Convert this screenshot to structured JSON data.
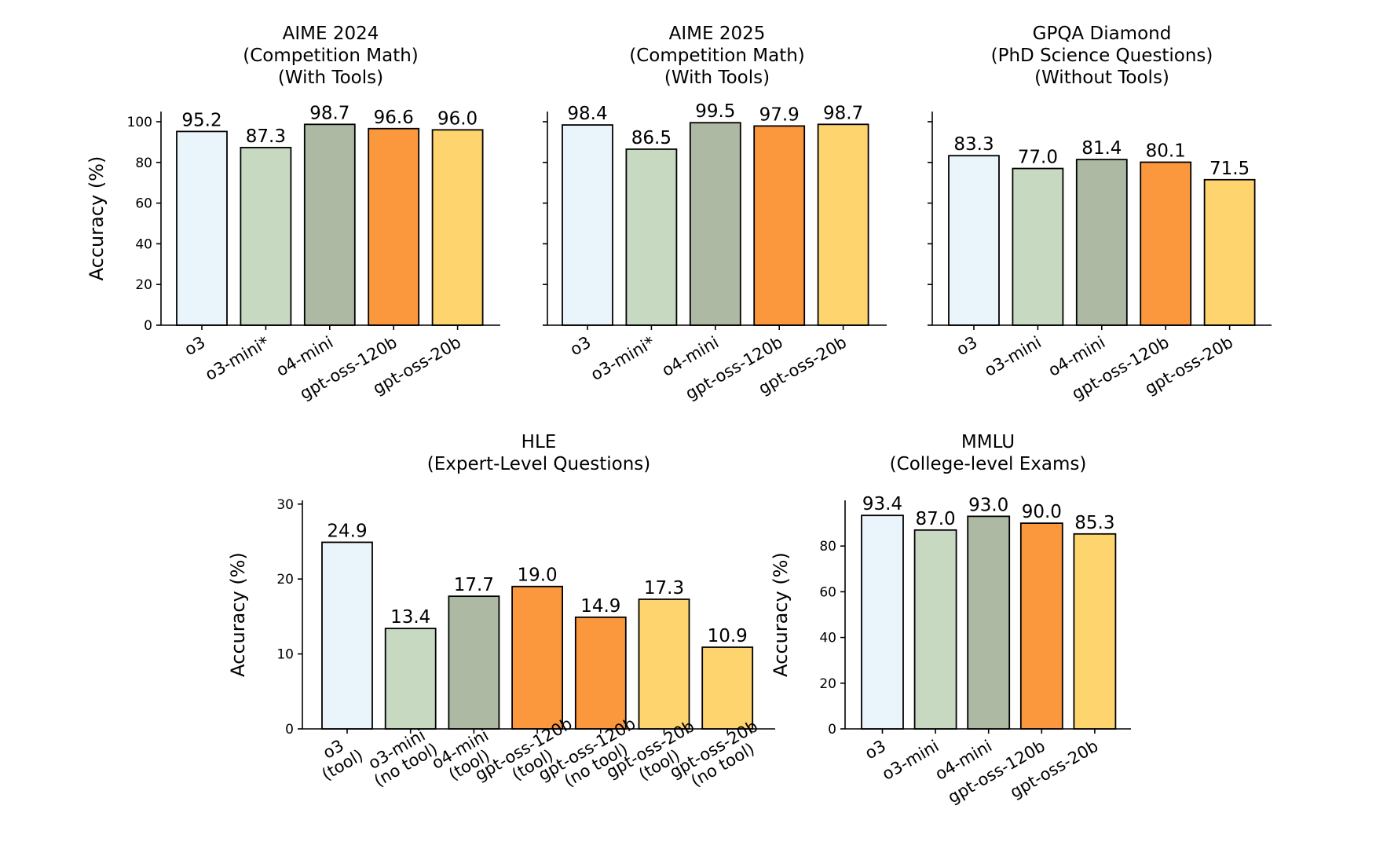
{
  "chart_data": [
    {
      "type": "bar",
      "title": [
        "AIME 2024",
        "(Competition Math)",
        "(With Tools)"
      ],
      "ylabel": "Accuracy (%)",
      "ylim": [
        0,
        105
      ],
      "yticks": [
        0,
        20,
        40,
        60,
        80,
        100
      ],
      "show_tick_labels": true,
      "categories": [
        [
          "o3"
        ],
        [
          "o3-mini*"
        ],
        [
          "o4-mini"
        ],
        [
          "gpt-oss-120b"
        ],
        [
          "gpt-oss-20b"
        ]
      ],
      "values": [
        95.2,
        87.3,
        98.7,
        96.6,
        96.0
      ],
      "value_labels": [
        "95.2",
        "87.3",
        "98.7",
        "96.6",
        "96.0"
      ],
      "colors": [
        "#eaf4fb",
        "#c8d9c2",
        "#adb9a3",
        "#fb983e",
        "#fed46f"
      ]
    },
    {
      "type": "bar",
      "title": [
        "AIME 2025",
        "(Competition Math)",
        "(With Tools)"
      ],
      "ylabel": "",
      "ylim": [
        0,
        105
      ],
      "yticks": [
        0,
        20,
        40,
        60,
        80,
        100
      ],
      "show_tick_labels": false,
      "categories": [
        [
          "o3"
        ],
        [
          "o3-mini*"
        ],
        [
          "o4-mini"
        ],
        [
          "gpt-oss-120b"
        ],
        [
          "gpt-oss-20b"
        ]
      ],
      "values": [
        98.4,
        86.5,
        99.5,
        97.9,
        98.7
      ],
      "value_labels": [
        "98.4",
        "86.5",
        "99.5",
        "97.9",
        "98.7"
      ],
      "colors": [
        "#eaf4fb",
        "#c8d9c2",
        "#adb9a3",
        "#fb983e",
        "#fed46f"
      ]
    },
    {
      "type": "bar",
      "title": [
        "GPQA Diamond",
        "(PhD Science Questions)",
        "(Without Tools)"
      ],
      "ylabel": "",
      "ylim": [
        0,
        105
      ],
      "yticks": [
        0,
        20,
        40,
        60,
        80,
        100
      ],
      "show_tick_labels": false,
      "categories": [
        [
          "o3"
        ],
        [
          "o3-mini"
        ],
        [
          "o4-mini"
        ],
        [
          "gpt-oss-120b"
        ],
        [
          "gpt-oss-20b"
        ]
      ],
      "values": [
        83.3,
        77.0,
        81.4,
        80.1,
        71.5
      ],
      "value_labels": [
        "83.3",
        "77.0",
        "81.4",
        "80.1",
        "71.5"
      ],
      "colors": [
        "#eaf4fb",
        "#c8d9c2",
        "#adb9a3",
        "#fb983e",
        "#fed46f"
      ]
    },
    {
      "type": "bar",
      "title": [
        "HLE",
        "(Expert-Level Questions)"
      ],
      "ylabel": "Accuracy (%)",
      "ylim": [
        0,
        30.5
      ],
      "yticks": [
        0,
        10,
        20,
        30
      ],
      "show_tick_labels": true,
      "categories": [
        [
          "o3",
          "(tool)"
        ],
        [
          "o3-mini",
          "(no tool)"
        ],
        [
          "o4-mini",
          "(tool)"
        ],
        [
          "gpt-oss-120b",
          "(tool)"
        ],
        [
          "gpt-oss-120b",
          "(no tool)"
        ],
        [
          "gpt-oss-20b",
          "(tool)"
        ],
        [
          "gpt-oss-20b",
          "(no tool)"
        ]
      ],
      "values": [
        24.9,
        13.4,
        17.7,
        19.0,
        14.9,
        17.3,
        10.9
      ],
      "value_labels": [
        "24.9",
        "13.4",
        "17.7",
        "19.0",
        "14.9",
        "17.3",
        "10.9"
      ],
      "colors": [
        "#eaf4fb",
        "#c8d9c2",
        "#adb9a3",
        "#fb983e",
        "#fb983e",
        "#fed46f",
        "#fed46f"
      ]
    },
    {
      "type": "bar",
      "title": [
        "MMLU",
        "(College-level Exams)"
      ],
      "ylabel": "Accuracy (%)",
      "ylim": [
        0,
        100
      ],
      "yticks": [
        0,
        20,
        40,
        60,
        80
      ],
      "show_tick_labels": true,
      "categories": [
        [
          "o3"
        ],
        [
          "o3-mini"
        ],
        [
          "o4-mini"
        ],
        [
          "gpt-oss-120b"
        ],
        [
          "gpt-oss-20b"
        ]
      ],
      "values": [
        93.4,
        87.0,
        93.0,
        90.0,
        85.3
      ],
      "value_labels": [
        "93.4",
        "87.0",
        "93.0",
        "90.0",
        "85.3"
      ],
      "colors": [
        "#eaf4fb",
        "#c8d9c2",
        "#adb9a3",
        "#fb983e",
        "#fed46f"
      ]
    }
  ]
}
